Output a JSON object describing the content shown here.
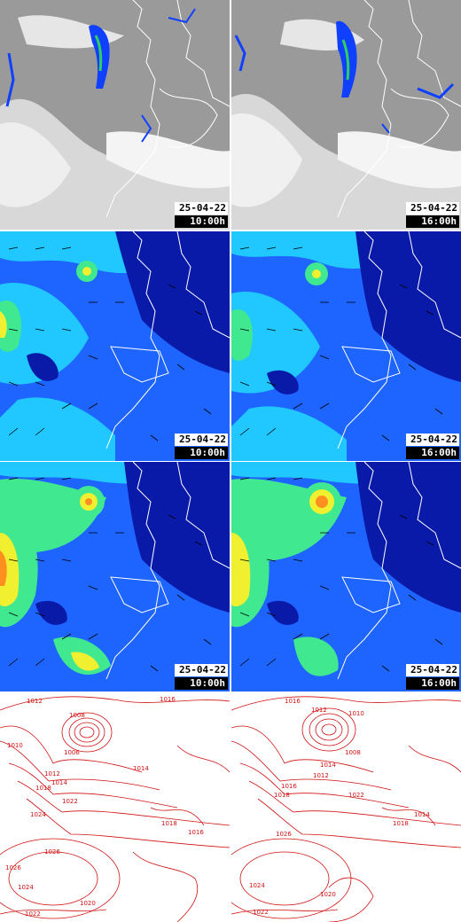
{
  "colors": {
    "satellite_bg": "#9a9a9a",
    "cloud_white": "#f2f2f2",
    "precip_blue": "#1040ff",
    "precip_green": "#30d060",
    "wind_deep": "#0a1aa8",
    "wind_blue": "#1e64ff",
    "wind_cyan": "#20c8ff",
    "wind_green": "#40e890",
    "wind_yellow": "#f0f030",
    "wind_orange": "#ff9020",
    "coast": "#ffffff",
    "isobar": "#d01010"
  },
  "panels": [
    {
      "row": "satellite",
      "date": "25-04-22",
      "time": "10:00h"
    },
    {
      "row": "satellite",
      "date": "25-04-22",
      "time": "16:00h"
    },
    {
      "row": "wind-low",
      "date": "25-04-22",
      "time": "10:00h"
    },
    {
      "row": "wind-low",
      "date": "25-04-22",
      "time": "16:00h"
    },
    {
      "row": "wind-high",
      "date": "25-04-22",
      "time": "10:00h"
    },
    {
      "row": "wind-high",
      "date": "25-04-22",
      "time": "16:00h"
    },
    {
      "row": "pressure",
      "date": "",
      "time": ""
    },
    {
      "row": "pressure",
      "date": "",
      "time": ""
    }
  ],
  "isobar_labels": {
    "left": [
      "1012",
      "1016",
      "1008",
      "1006",
      "1014",
      "1010",
      "1012",
      "1014",
      "1018",
      "1022",
      "1024",
      "1026",
      "1024",
      "1022",
      "1020",
      "1026",
      "1018",
      "1016"
    ],
    "right": [
      "1016",
      "1012",
      "1010",
      "1008",
      "1014",
      "1012",
      "1016",
      "1018",
      "1022",
      "1026",
      "1024",
      "1022",
      "1020",
      "1018",
      "1014"
    ]
  }
}
